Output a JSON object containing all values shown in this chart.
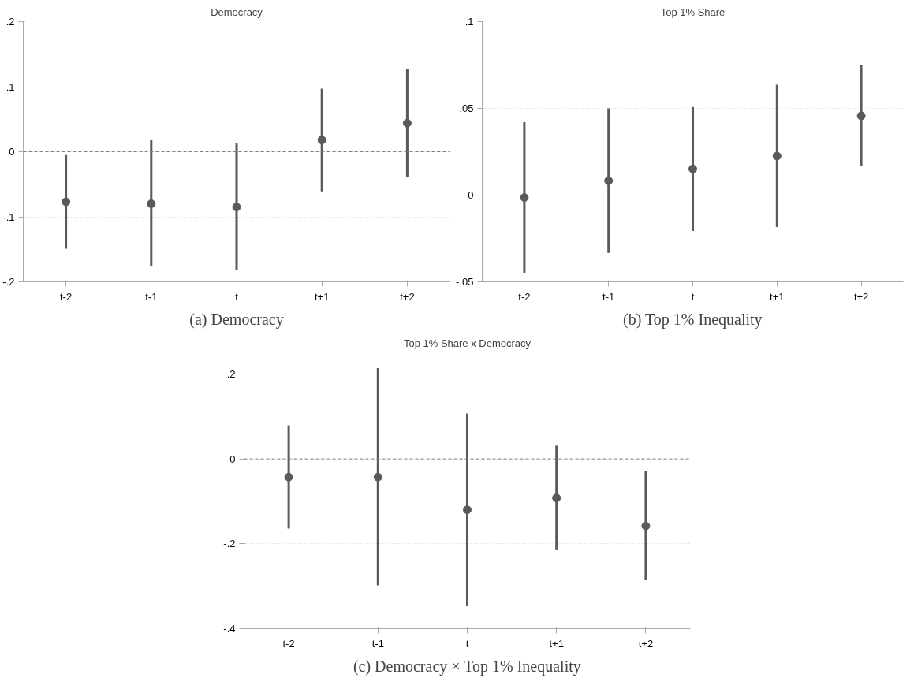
{
  "chart_data": [
    {
      "type": "scatter",
      "title": "Democracy",
      "categories": [
        "t-2",
        "t-1",
        "t",
        "t+1",
        "t+2"
      ],
      "series": [
        {
          "color": "#5a5a5a",
          "values": [
            -0.077,
            -0.08,
            -0.085,
            0.018,
            0.044
          ],
          "errors": [
            [
              -0.149,
              -0.005
            ],
            [
              -0.176,
              0.018
            ],
            [
              -0.182,
              0.013
            ],
            [
              -0.061,
              0.097
            ],
            [
              -0.039,
              0.127
            ]
          ]
        }
      ],
      "ylim": [
        -0.2,
        0.2
      ],
      "yticks": [
        {
          "value": -0.2,
          "label": "-.2"
        },
        {
          "value": -0.1,
          "label": "-.1"
        },
        0,
        {
          "value": 0.1,
          "label": ".1"
        },
        {
          "value": 0.2,
          "label": ".2"
        }
      ],
      "ref_lines": [
        {
          "axis": "y",
          "value": 0,
          "color": "#808080",
          "line_style": "dashed"
        }
      ],
      "grid": "y",
      "marker": "circle",
      "annotations": [
        "(a) Democracy"
      ]
    },
    {
      "type": "scatter",
      "title": "Top 1% Share",
      "categories": [
        "t-2",
        "t-1",
        "t",
        "t+1",
        "t+2"
      ],
      "series": [
        {
          "color": "#5a5a5a",
          "values": [
            -0.0014,
            0.0083,
            0.0151,
            0.0225,
            0.0457
          ],
          "errors": [
            [
              -0.0448,
              0.042
            ],
            [
              -0.0333,
              0.05
            ],
            [
              -0.0207,
              0.0508
            ],
            [
              -0.0184,
              0.0636
            ],
            [
              0.0171,
              0.0748
            ]
          ]
        }
      ],
      "ylim": [
        -0.05,
        0.1
      ],
      "yticks": [
        {
          "value": -0.05,
          "label": "-.05"
        },
        0,
        {
          "value": 0.05,
          "label": ".05"
        },
        {
          "value": 0.1,
          "label": ".1"
        }
      ],
      "ref_lines": [
        {
          "axis": "y",
          "value": 0,
          "color": "#808080",
          "line_style": "dashed"
        }
      ],
      "grid": "y",
      "marker": "circle",
      "annotations": [
        "(b) Top 1% Inequality"
      ]
    },
    {
      "type": "scatter",
      "title": "Top 1% Share x Democracy",
      "categories": [
        "t-2",
        "t-1",
        "t",
        "t+1",
        "t+2"
      ],
      "series": [
        {
          "color": "#5a5a5a",
          "values": [
            -0.043,
            -0.043,
            -0.12,
            -0.092,
            -0.158
          ],
          "errors": [
            [
              -0.164,
              0.079
            ],
            [
              -0.298,
              0.214
            ],
            [
              -0.347,
              0.107
            ],
            [
              -0.215,
              0.031
            ],
            [
              -0.286,
              -0.028
            ]
          ]
        }
      ],
      "ylim": [
        -0.4,
        0.25
      ],
      "yticks": [
        {
          "value": -0.4,
          "label": "-.4"
        },
        {
          "value": -0.2,
          "label": "-.2"
        },
        0,
        {
          "value": 0.2,
          "label": ".2"
        }
      ],
      "ref_lines": [
        {
          "axis": "y",
          "value": 0,
          "color": "#808080",
          "line_style": "dashed"
        }
      ],
      "grid": "y",
      "marker": "circle",
      "annotations": [
        "(c) Democracy × Top 1% Inequality"
      ]
    }
  ]
}
